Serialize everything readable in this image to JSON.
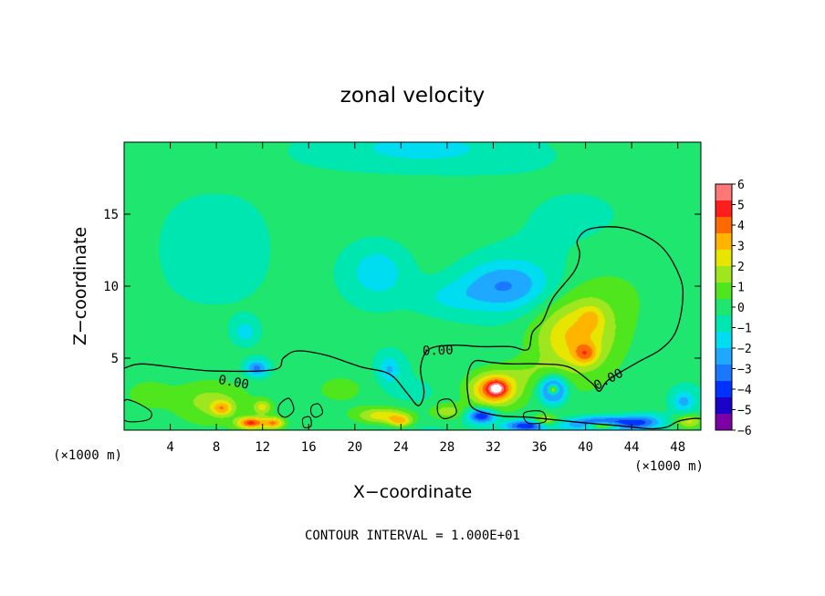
{
  "chart_data": {
    "type": "heatmap",
    "title": "zonal velocity",
    "xlabel": "X−coordinate",
    "ylabel": "Z−coordinate",
    "x_unit_label": "(×1000 m)",
    "y_unit_label": "(×1000 m)",
    "xlim": [
      0,
      50
    ],
    "ylim": [
      0,
      20
    ],
    "x_ticks": [
      4,
      8,
      12,
      16,
      20,
      24,
      28,
      32,
      36,
      40,
      44,
      48
    ],
    "y_ticks": [
      5,
      10,
      15
    ],
    "colorbar": {
      "ticks": [
        6,
        5,
        4,
        3,
        2,
        1,
        0,
        -1,
        -2,
        -3,
        -4,
        -5,
        -6
      ],
      "tick_labels": [
        "6",
        "5",
        "4",
        "3",
        "2",
        "1",
        "0",
        "−1",
        "−2",
        "−3",
        "−4",
        "−5",
        "−6"
      ],
      "range": [
        -6,
        6
      ],
      "colors": [
        "#7b00a6",
        "#1a00c8",
        "#0033ff",
        "#1a78ff",
        "#1ea8ff",
        "#00dcf0",
        "#00e6b0",
        "#1ee66e",
        "#50e61e",
        "#a0e61e",
        "#e6e600",
        "#ffb400",
        "#ff6a00",
        "#ff1e1e",
        "#ff7878"
      ]
    },
    "contour_level_label": "0.00",
    "contour_interval_text": "CONTOUR INTERVAL = 1.000E+01",
    "blobs": [
      {
        "x": 33,
        "z": 10,
        "sx": 4.0,
        "sz": 1.8,
        "v": -2.6
      },
      {
        "x": 22,
        "z": 11,
        "sx": 3.0,
        "sz": 2.2,
        "v": -1.8
      },
      {
        "x": 28,
        "z": 9.2,
        "sx": 3.0,
        "sz": 1.2,
        "v": -1.0
      },
      {
        "x": 26,
        "z": 19.5,
        "sx": 9.0,
        "sz": 1.5,
        "v": -1.2
      },
      {
        "x": 10.5,
        "z": 6.8,
        "sx": 1.0,
        "sz": 0.8,
        "v": -1.5
      },
      {
        "x": 11.5,
        "z": 4.3,
        "sx": 1.0,
        "sz": 0.6,
        "v": -3.0
      },
      {
        "x": 23,
        "z": 4.2,
        "sx": 1.0,
        "sz": 1.0,
        "v": -1.8
      },
      {
        "x": 39,
        "z": 6.5,
        "sx": 3.5,
        "sz": 2.6,
        "v": 3.0
      },
      {
        "x": 40,
        "z": 5.3,
        "sx": 1.0,
        "sz": 0.7,
        "v": 2.2
      },
      {
        "x": 40.5,
        "z": 7.8,
        "sx": 1.0,
        "sz": 0.8,
        "v": 1.2
      },
      {
        "x": 42,
        "z": 9.5,
        "sx": 4.5,
        "sz": 3.0,
        "v": 0.9
      },
      {
        "x": 32,
        "z": 2.8,
        "sx": 2.2,
        "sz": 1.2,
        "v": 4.2
      },
      {
        "x": 32.3,
        "z": 2.9,
        "sx": 0.8,
        "sz": 0.5,
        "v": 3.0
      },
      {
        "x": 37.2,
        "z": 2.8,
        "sx": 1.1,
        "sz": 0.9,
        "v": -5.0
      },
      {
        "x": 37.2,
        "z": 2.8,
        "sx": 0.45,
        "sz": 0.35,
        "v": 6.0
      },
      {
        "x": 48.5,
        "z": 2.0,
        "sx": 1.0,
        "sz": 0.8,
        "v": -2.0
      },
      {
        "x": 7.5,
        "z": 2.0,
        "sx": 3.0,
        "sz": 1.3,
        "v": 1.4
      },
      {
        "x": 8.5,
        "z": 1.5,
        "sx": 0.9,
        "sz": 0.5,
        "v": 2.5
      },
      {
        "x": 12,
        "z": 1.6,
        "sx": 0.8,
        "sz": 0.5,
        "v": 2.2
      },
      {
        "x": 19,
        "z": 2.8,
        "sx": 3.0,
        "sz": 1.4,
        "v": 1.0
      },
      {
        "x": 22.5,
        "z": 1.0,
        "sx": 2.5,
        "sz": 0.6,
        "v": 3.0
      },
      {
        "x": 11,
        "z": 0.5,
        "sx": 1.2,
        "sz": 0.4,
        "v": 4.5
      },
      {
        "x": 13,
        "z": 0.5,
        "sx": 0.9,
        "sz": 0.4,
        "v": 3.5
      },
      {
        "x": 24,
        "z": 0.6,
        "sx": 1.0,
        "sz": 0.4,
        "v": 2.5
      },
      {
        "x": 31,
        "z": 1.0,
        "sx": 1.2,
        "sz": 0.5,
        "v": -4.5
      },
      {
        "x": 35,
        "z": 0.3,
        "sx": 2.0,
        "sz": 0.4,
        "v": -4.5
      },
      {
        "x": 41.5,
        "z": 0.4,
        "sx": 3.0,
        "sz": 0.5,
        "v": -5.5
      },
      {
        "x": 41.5,
        "z": 0.3,
        "sx": 1.5,
        "sz": 0.25,
        "v": 6.0
      },
      {
        "x": 36.5,
        "z": 0.6,
        "sx": 1.0,
        "sz": 0.4,
        "v": 3.0
      },
      {
        "x": 45,
        "z": 0.6,
        "sx": 1.8,
        "sz": 0.5,
        "v": -2.5
      },
      {
        "x": 49,
        "z": 0.6,
        "sx": 1.2,
        "sz": 0.5,
        "v": 2.5
      },
      {
        "x": 28,
        "z": 1.3,
        "sx": 1.5,
        "sz": 0.6,
        "v": 2.0
      },
      {
        "x": 35,
        "z": 4.0,
        "sx": 2.5,
        "sz": 1.0,
        "v": 0.8
      },
      {
        "x": 2,
        "z": 2.5,
        "sx": 2.0,
        "sz": 1.0,
        "v": 1.0
      }
    ],
    "zero_contour": [
      [
        0,
        4.3
      ],
      [
        1.5,
        4.6
      ],
      [
        5,
        4.3
      ],
      [
        8,
        4.1
      ],
      [
        13,
        4.2
      ],
      [
        13.8,
        5.0
      ],
      [
        15,
        5.5
      ],
      [
        17.5,
        5.2
      ],
      [
        20.5,
        4.4
      ],
      [
        23,
        3.9
      ],
      [
        24.5,
        2.6
      ],
      [
        25.5,
        1.7
      ],
      [
        26,
        2.6
      ],
      [
        25.7,
        4.3
      ],
      [
        26.4,
        5.6
      ],
      [
        28.5,
        5.9
      ],
      [
        31,
        5.8
      ],
      [
        33.5,
        5.8
      ],
      [
        35,
        5.6
      ],
      [
        35.4,
        6.8
      ],
      [
        36.3,
        7.6
      ],
      [
        37.2,
        9.2
      ],
      [
        39,
        11.0
      ],
      [
        39.5,
        12.2
      ],
      [
        39.3,
        13.2
      ],
      [
        40.5,
        14.0
      ],
      [
        43.5,
        14.0
      ],
      [
        46.5,
        12.8
      ],
      [
        48.2,
        10.6
      ],
      [
        48.4,
        8.8
      ],
      [
        47.8,
        6.8
      ],
      [
        46.5,
        5.6
      ],
      [
        44.5,
        4.7
      ],
      [
        42,
        3.5
      ],
      [
        41.2,
        2.7
      ],
      [
        40.5,
        3.3
      ],
      [
        38.5,
        4.4
      ],
      [
        35.8,
        4.6
      ],
      [
        33.5,
        4.6
      ],
      [
        31.8,
        4.7
      ],
      [
        30.4,
        4.8
      ],
      [
        29.8,
        3.9
      ],
      [
        29.8,
        2.5
      ],
      [
        30.3,
        1.5
      ],
      [
        32.5,
        1.0
      ],
      [
        35,
        0.9
      ],
      [
        37.5,
        0.7
      ],
      [
        40,
        0.5
      ],
      [
        43,
        0.3
      ],
      [
        45.5,
        0.1
      ],
      [
        47,
        0.2
      ],
      [
        48,
        0.6
      ],
      [
        49.2,
        0.8
      ],
      [
        50,
        0.8
      ]
    ],
    "zero_contour_blobs": [
      [
        [
          0,
          2.0
        ],
        [
          0.8,
          2.0
        ],
        [
          2.3,
          1.3
        ],
        [
          2.0,
          0.7
        ],
        [
          0,
          0.7
        ]
      ],
      [
        [
          13.5,
          1.8
        ],
        [
          14.3,
          2.2
        ],
        [
          14.7,
          1.4
        ],
        [
          14.0,
          0.9
        ],
        [
          13.4,
          1.2
        ]
      ],
      [
        [
          16.3,
          1.7
        ],
        [
          16.9,
          1.8
        ],
        [
          17.2,
          1.2
        ],
        [
          16.6,
          0.9
        ],
        [
          16.2,
          1.2
        ]
      ],
      [
        [
          15.5,
          0.8
        ],
        [
          16.1,
          0.9
        ],
        [
          16.2,
          0.3
        ],
        [
          15.6,
          0.2
        ]
      ],
      [
        [
          27.3,
          2.0
        ],
        [
          28.3,
          2.1
        ],
        [
          28.8,
          1.2
        ],
        [
          27.8,
          0.8
        ],
        [
          27.2,
          1.2
        ]
      ],
      [
        [
          34.7,
          1.2
        ],
        [
          36.2,
          1.3
        ],
        [
          36.5,
          0.6
        ],
        [
          35.0,
          0.5
        ]
      ]
    ],
    "contour_labels": [
      {
        "x": 9.5,
        "z": 3.3,
        "angle": 10
      },
      {
        "x": 27.2,
        "z": 5.5,
        "angle": -2
      },
      {
        "x": 42,
        "z": 3.5,
        "angle": -28
      }
    ]
  }
}
